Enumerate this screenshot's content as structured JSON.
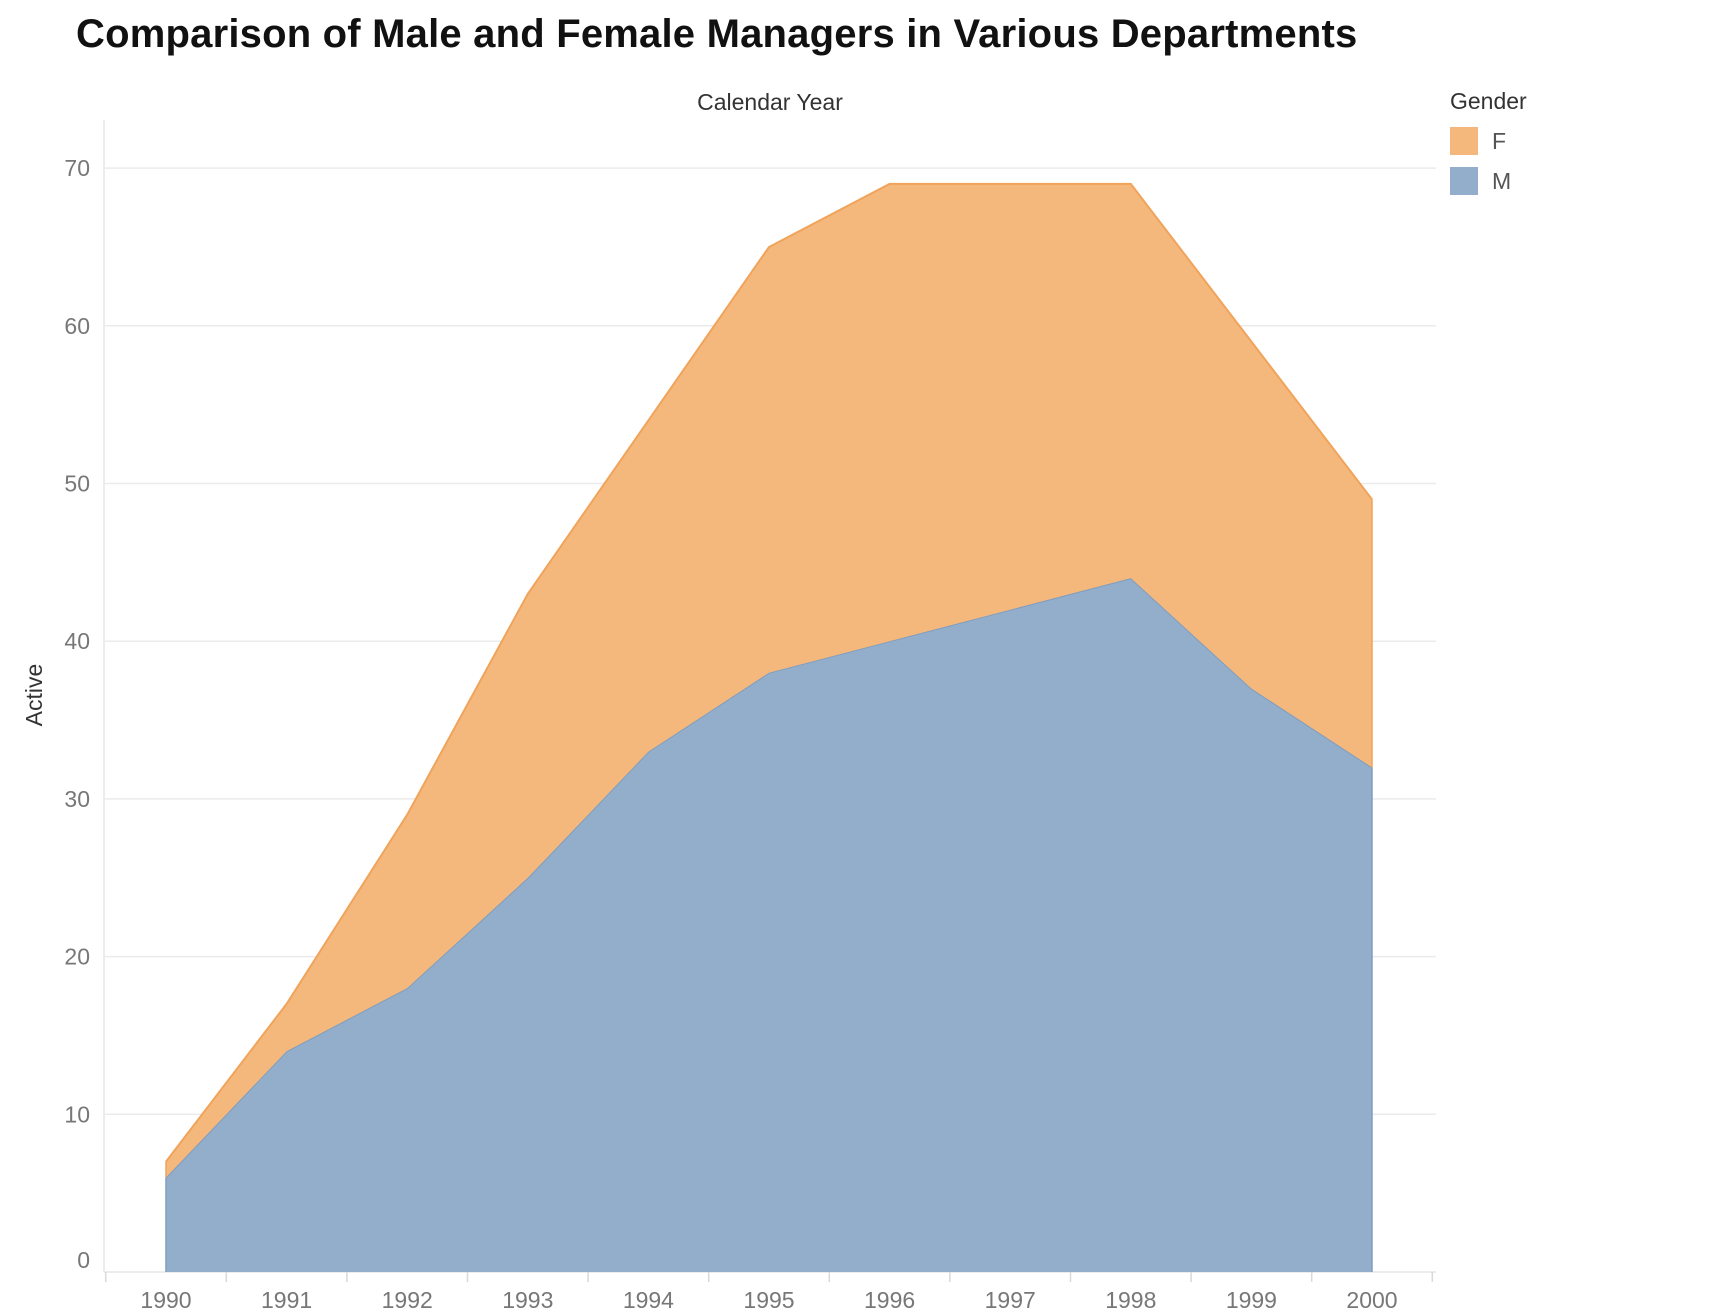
{
  "title": "Comparison of Male and Female Managers in Various Departments",
  "legend": {
    "title": "Gender",
    "items": [
      {
        "label": "F",
        "color": "#f5b87c"
      },
      {
        "label": "M",
        "color": "#93aecb"
      }
    ]
  },
  "chart_data": {
    "type": "area",
    "stacked": true,
    "title": "Comparison of Male and Female Managers in Various Departments",
    "xlabel": "Calendar Year",
    "ylabel": "Active",
    "categories": [
      "1990",
      "1991",
      "1992",
      "1993",
      "1994",
      "1995",
      "1996",
      "1997",
      "1998",
      "1999",
      "2000"
    ],
    "yticks": [
      0,
      10,
      20,
      30,
      40,
      50,
      60,
      70
    ],
    "ylim": [
      0,
      73
    ],
    "grid": true,
    "legend_position": "top-right",
    "series": [
      {
        "name": "M",
        "color": "#93aecb",
        "line_color": "#7f9dbf",
        "values": [
          6,
          14,
          18,
          25,
          33,
          38,
          40,
          42,
          44,
          37,
          32
        ]
      },
      {
        "name": "F",
        "color": "#f5b87c",
        "line_color": "#f0a35a",
        "values": [
          1,
          3,
          11,
          18,
          21,
          27,
          29,
          27,
          25,
          22,
          17
        ]
      }
    ]
  }
}
